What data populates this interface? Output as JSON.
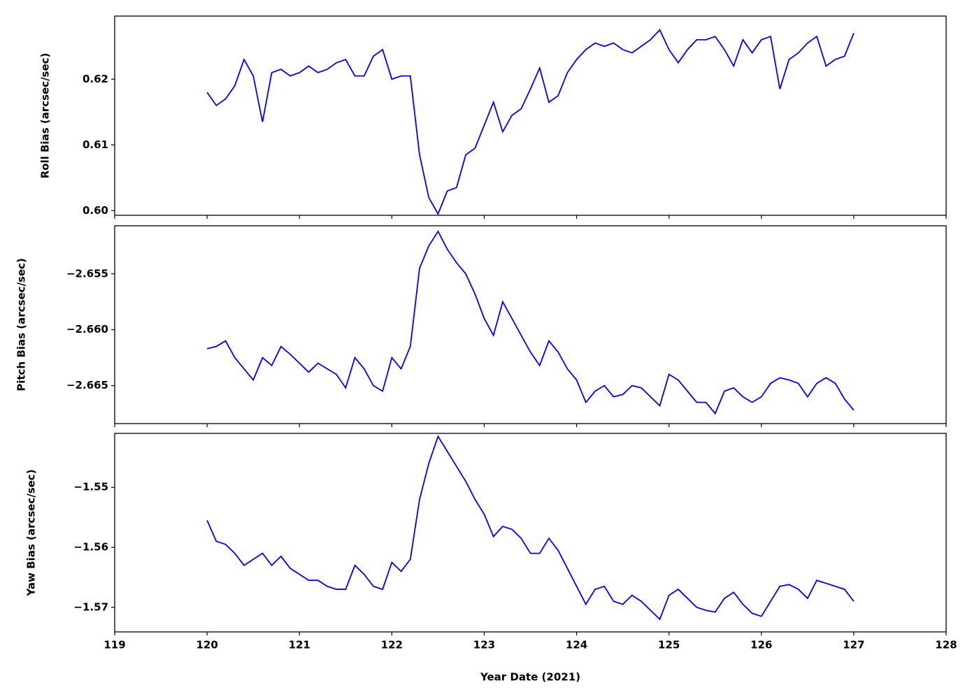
{
  "chart_data": [
    {
      "type": "line",
      "ylabel": "Roll Bias (arcsec/sec)",
      "x": [
        120.0,
        120.1,
        120.2,
        120.3,
        120.4,
        120.5,
        120.6,
        120.7,
        120.8,
        120.9,
        121.0,
        121.1,
        121.2,
        121.3,
        121.4,
        121.5,
        121.6,
        121.7,
        121.8,
        121.9,
        122.0,
        122.1,
        122.2,
        122.3,
        122.4,
        122.5,
        122.6,
        122.7,
        122.8,
        122.9,
        123.0,
        123.1,
        123.2,
        123.3,
        123.4,
        123.5,
        123.6,
        123.7,
        123.8,
        123.9,
        124.0,
        124.1,
        124.2,
        124.3,
        124.4,
        124.5,
        124.6,
        124.7,
        124.8,
        124.9,
        125.0,
        125.1,
        125.2,
        125.3,
        125.4,
        125.5,
        125.6,
        125.7,
        125.8,
        125.9,
        126.0,
        126.1,
        126.2,
        126.3,
        126.4,
        126.5,
        126.6,
        126.7,
        126.8,
        126.9,
        127.0
      ],
      "series": [
        {
          "color": "#0000ff",
          "values": [
            0.618,
            0.616,
            0.617,
            0.619,
            0.623,
            0.6205,
            0.6135,
            0.621,
            0.6215,
            0.6205,
            0.621,
            0.622,
            0.621,
            0.6215,
            0.6225,
            0.623,
            0.6205,
            0.6205,
            0.6235,
            0.6245,
            0.62,
            0.6205,
            0.6205,
            0.6085,
            0.602,
            0.5995,
            0.603,
            0.6035,
            0.6085,
            0.6095,
            0.613,
            0.6165,
            0.612,
            0.6145,
            0.6155,
            0.6185,
            0.6217,
            0.6165,
            0.6175,
            0.621,
            0.623,
            0.6245,
            0.6255,
            0.625,
            0.6255,
            0.6245,
            0.624,
            0.625,
            0.626,
            0.6275,
            0.6245,
            0.6225,
            0.6245,
            0.626,
            0.626,
            0.6265,
            0.6245,
            0.622,
            0.626,
            0.624,
            0.626,
            0.6265,
            0.6185,
            0.623,
            0.624,
            0.6255,
            0.6265,
            0.622,
            0.623,
            0.6235,
            0.627
          ]
        }
      ],
      "ylim": [
        0.5993,
        0.6296
      ],
      "yticks": [
        {
          "value": 0.6,
          "label": "0.60"
        },
        0.61,
        0.62
      ]
    },
    {
      "type": "line",
      "ylabel": "Pitch Bias (arcsec/sec)",
      "x": [
        120.0,
        120.1,
        120.2,
        120.3,
        120.4,
        120.5,
        120.6,
        120.7,
        120.8,
        120.9,
        121.0,
        121.1,
        121.2,
        121.3,
        121.4,
        121.5,
        121.6,
        121.7,
        121.8,
        121.9,
        122.0,
        122.1,
        122.2,
        122.3,
        122.4,
        122.5,
        122.6,
        122.7,
        122.8,
        122.9,
        123.0,
        123.1,
        123.2,
        123.3,
        123.4,
        123.5,
        123.6,
        123.7,
        123.8,
        123.9,
        124.0,
        124.1,
        124.2,
        124.3,
        124.4,
        124.5,
        124.6,
        124.7,
        124.8,
        124.9,
        125.0,
        125.1,
        125.2,
        125.3,
        125.4,
        125.5,
        125.6,
        125.7,
        125.8,
        125.9,
        126.0,
        126.1,
        126.2,
        126.3,
        126.4,
        126.5,
        126.6,
        126.7,
        126.8,
        126.9,
        127.0
      ],
      "series": [
        {
          "color": "#0000ff",
          "values": [
            -2.6617,
            -2.6615,
            -2.661,
            -2.6625,
            -2.6635,
            -2.6645,
            -2.6625,
            -2.6632,
            -2.6615,
            -2.6622,
            -2.663,
            -2.6638,
            -2.663,
            -2.6635,
            -2.664,
            -2.6652,
            -2.6625,
            -2.6635,
            -2.665,
            -2.6655,
            -2.6625,
            -2.6635,
            -2.6615,
            -2.6545,
            -2.6525,
            -2.6512,
            -2.6528,
            -2.654,
            -2.655,
            -2.6568,
            -2.659,
            -2.6605,
            -2.6575,
            -2.659,
            -2.6605,
            -2.662,
            -2.6632,
            -2.661,
            -2.662,
            -2.6635,
            -2.6645,
            -2.6665,
            -2.6655,
            -2.665,
            -2.666,
            -2.6658,
            -2.665,
            -2.6652,
            -2.666,
            -2.6668,
            -2.664,
            -2.6645,
            -2.6655,
            -2.6665,
            -2.6665,
            -2.6675,
            -2.6655,
            -2.6652,
            -2.666,
            -2.6665,
            -2.666,
            -2.6648,
            -2.6643,
            -2.6645,
            -2.6648,
            -2.666,
            -2.6648,
            -2.6643,
            -2.6648,
            -2.6662,
            -2.6672
          ]
        }
      ],
      "ylim": [
        -2.6684,
        -2.6507
      ],
      "yticks": [
        {
          "value": -2.655,
          "label": "−2.655"
        },
        {
          "value": -2.66,
          "label": "−2.660"
        },
        {
          "value": -2.665,
          "label": "−2.665"
        }
      ]
    },
    {
      "type": "line",
      "ylabel": "Yaw Bias (arcsec/sec)",
      "xlabel": "Year Date (2021)",
      "x": [
        120.0,
        120.1,
        120.2,
        120.3,
        120.4,
        120.5,
        120.6,
        120.7,
        120.8,
        120.9,
        121.0,
        121.1,
        121.2,
        121.3,
        121.4,
        121.5,
        121.6,
        121.7,
        121.8,
        121.9,
        122.0,
        122.1,
        122.2,
        122.3,
        122.4,
        122.5,
        122.6,
        122.7,
        122.8,
        122.9,
        123.0,
        123.1,
        123.2,
        123.3,
        123.4,
        123.5,
        123.6,
        123.7,
        123.8,
        123.9,
        124.0,
        124.1,
        124.2,
        124.3,
        124.4,
        124.5,
        124.6,
        124.7,
        124.8,
        124.9,
        125.0,
        125.1,
        125.2,
        125.3,
        125.4,
        125.5,
        125.6,
        125.7,
        125.8,
        125.9,
        126.0,
        126.1,
        126.2,
        126.3,
        126.4,
        126.5,
        126.6,
        126.7,
        126.8,
        126.9,
        127.0
      ],
      "series": [
        {
          "color": "#0000ff",
          "values": [
            -1.5555,
            -1.559,
            -1.5595,
            -1.561,
            -1.563,
            -1.562,
            -1.561,
            -1.563,
            -1.5615,
            -1.5635,
            -1.5645,
            -1.5655,
            -1.5655,
            -1.5665,
            -1.567,
            -1.567,
            -1.563,
            -1.5645,
            -1.5665,
            -1.567,
            -1.5625,
            -1.564,
            -1.562,
            -1.552,
            -1.546,
            -1.5415,
            -1.544,
            -1.5465,
            -1.549,
            -1.552,
            -1.5545,
            -1.5582,
            -1.5565,
            -1.557,
            -1.5585,
            -1.561,
            -1.561,
            -1.5585,
            -1.5605,
            -1.5635,
            -1.5665,
            -1.5695,
            -1.567,
            -1.5665,
            -1.569,
            -1.5695,
            -1.568,
            -1.569,
            -1.5705,
            -1.572,
            -1.568,
            -1.567,
            -1.5685,
            -1.57,
            -1.5705,
            -1.5708,
            -1.5685,
            -1.5675,
            -1.5695,
            -1.571,
            -1.5715,
            -1.569,
            -1.5665,
            -1.5662,
            -1.567,
            -1.5685,
            -1.5655,
            -1.566,
            -1.5665,
            -1.567,
            -1.569
          ]
        }
      ],
      "ylim": [
        -1.5741,
        -1.541
      ],
      "yticks": [
        {
          "value": -1.55,
          "label": "−1.55"
        },
        {
          "value": -1.56,
          "label": "−1.56"
        },
        {
          "value": -1.57,
          "label": "−1.57"
        }
      ],
      "xlim": [
        119,
        128
      ],
      "xticks": [
        119,
        120,
        121,
        122,
        123,
        124,
        125,
        126,
        127,
        128
      ]
    }
  ]
}
